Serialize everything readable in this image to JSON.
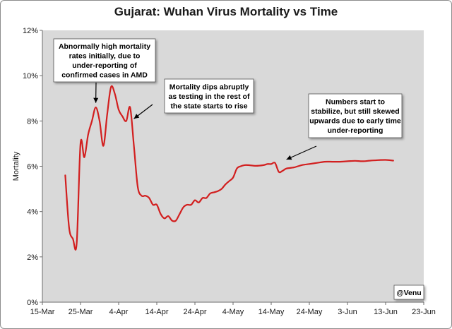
{
  "chart_data": {
    "type": "line",
    "title": "Gujarat: Wuhan Virus Mortality vs Time",
    "xlabel": "",
    "ylabel": "Mortality",
    "x_ticks": [
      "15-Mar",
      "25-Mar",
      "4-Apr",
      "14-Apr",
      "24-Apr",
      "4-May",
      "14-May",
      "24-May",
      "3-Jun",
      "13-Jun",
      "23-Jun"
    ],
    "xlim": [
      "15-Mar",
      "23-Jun"
    ],
    "y_ticks": [
      "0%",
      "2%",
      "4%",
      "6%",
      "8%",
      "10%",
      "12%"
    ],
    "ylim": [
      0,
      12
    ],
    "grid": false,
    "legend": "none",
    "background_color": "#d9d9d9",
    "line_color": "#d21f1f",
    "credit": "@Venu",
    "series": [
      {
        "points": [
          [
            "21-Mar",
            5.6
          ],
          [
            "22-Mar",
            3.3
          ],
          [
            "23-Mar",
            2.8
          ],
          [
            "24-Mar",
            2.6
          ],
          [
            "25-Mar",
            7.0
          ],
          [
            "26-Mar",
            6.4
          ],
          [
            "27-Mar",
            7.4
          ],
          [
            "28-Mar",
            8.0
          ],
          [
            "29-Mar",
            8.6
          ],
          [
            "30-Mar",
            8.0
          ],
          [
            "31-Mar",
            6.9
          ],
          [
            "1-Apr",
            8.3
          ],
          [
            "2-Apr",
            9.5
          ],
          [
            "3-Apr",
            9.2
          ],
          [
            "4-Apr",
            8.5
          ],
          [
            "5-Apr",
            8.2
          ],
          [
            "6-Apr",
            8.0
          ],
          [
            "7-Apr",
            8.6
          ],
          [
            "8-Apr",
            6.9
          ],
          [
            "9-Apr",
            5.1
          ],
          [
            "10-Apr",
            4.7
          ],
          [
            "11-Apr",
            4.7
          ],
          [
            "12-Apr",
            4.6
          ],
          [
            "13-Apr",
            4.3
          ],
          [
            "14-Apr",
            4.3
          ],
          [
            "15-Apr",
            3.9
          ],
          [
            "16-Apr",
            3.7
          ],
          [
            "17-Apr",
            3.8
          ],
          [
            "18-Apr",
            3.6
          ],
          [
            "19-Apr",
            3.6
          ],
          [
            "20-Apr",
            3.9
          ],
          [
            "21-Apr",
            4.2
          ],
          [
            "22-Apr",
            4.3
          ],
          [
            "23-Apr",
            4.3
          ],
          [
            "24-Apr",
            4.5
          ],
          [
            "25-Apr",
            4.4
          ],
          [
            "26-Apr",
            4.6
          ],
          [
            "27-Apr",
            4.6
          ],
          [
            "28-Apr",
            4.8
          ],
          [
            "29-Apr",
            4.85
          ],
          [
            "30-Apr",
            4.9
          ],
          [
            "1-May",
            5.0
          ],
          [
            "2-May",
            5.2
          ],
          [
            "3-May",
            5.35
          ],
          [
            "4-May",
            5.5
          ],
          [
            "5-May",
            5.9
          ],
          [
            "6-May",
            6.0
          ],
          [
            "7-May",
            6.05
          ],
          [
            "8-May",
            6.05
          ],
          [
            "10-May",
            6.02
          ],
          [
            "12-May",
            6.05
          ],
          [
            "13-May",
            6.1
          ],
          [
            "14-May",
            6.1
          ],
          [
            "15-May",
            6.15
          ],
          [
            "16-May",
            5.75
          ],
          [
            "17-May",
            5.8
          ],
          [
            "18-May",
            5.9
          ],
          [
            "20-May",
            5.95
          ],
          [
            "22-May",
            6.05
          ],
          [
            "24-May",
            6.1
          ],
          [
            "26-May",
            6.15
          ],
          [
            "28-May",
            6.2
          ],
          [
            "30-May",
            6.2
          ],
          [
            "1-Jun",
            6.2
          ],
          [
            "3-Jun",
            6.22
          ],
          [
            "5-Jun",
            6.24
          ],
          [
            "7-Jun",
            6.22
          ],
          [
            "9-Jun",
            6.25
          ],
          [
            "11-Jun",
            6.27
          ],
          [
            "13-Jun",
            6.28
          ],
          [
            "15-Jun",
            6.25
          ]
        ]
      }
    ],
    "annotations": [
      {
        "lines": [
          "Abnormally high mortality",
          "rates initially, due to",
          "under-reporting of",
          "confirmed cases in AMD"
        ],
        "points_to": [
          "29-Mar",
          8.8
        ]
      },
      {
        "lines": [
          "Mortality dips abruptly",
          "as testing in the rest of",
          "the state starts to rise"
        ],
        "points_to": [
          "8-Apr",
          8.1
        ]
      },
      {
        "lines": [
          "Numbers start to",
          "stabilize, but still skewed",
          "upwards due to early time",
          "under-reporting"
        ],
        "points_to": [
          "18-May",
          6.3
        ]
      }
    ]
  }
}
